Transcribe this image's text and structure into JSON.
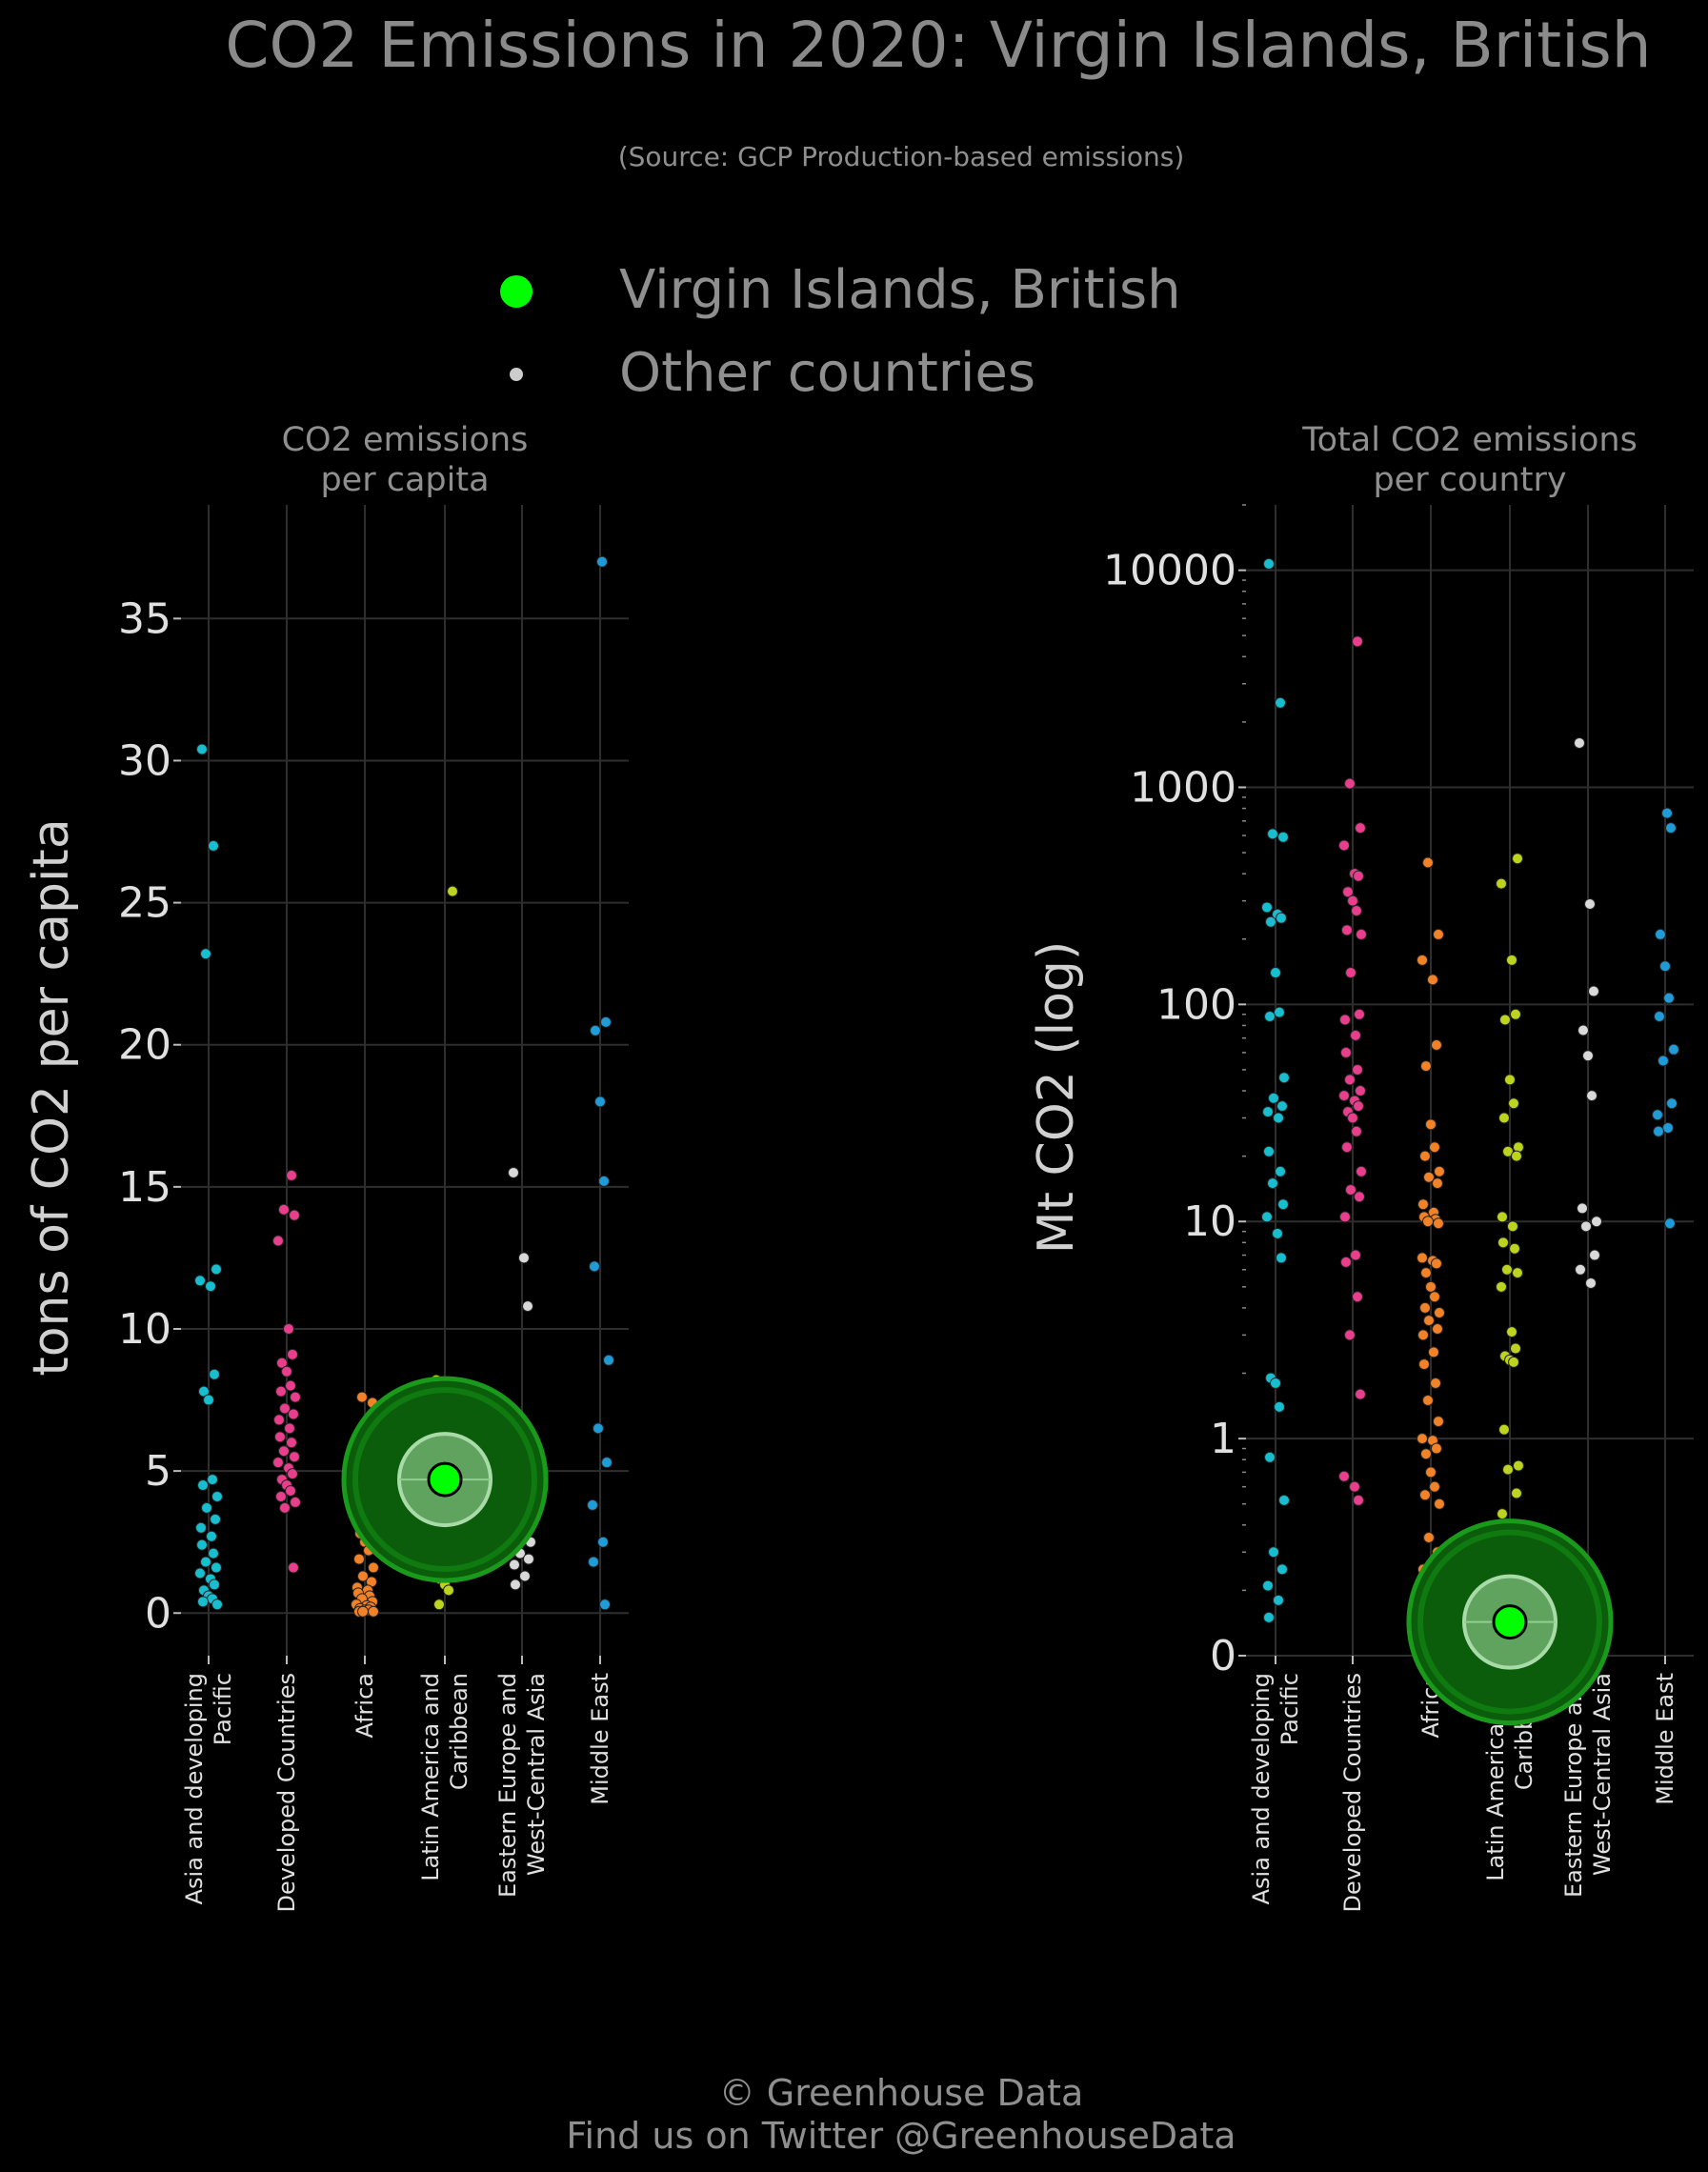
{
  "title": "CO2 Emissions in 2020: Virgin Islands, British",
  "subtitle": "(Source: GCP Production-based emissions)",
  "legend": {
    "highlight_label": "Virgin Islands, British",
    "highlight_color": "#00ff00",
    "other_label": "Other countries",
    "other_color": "#cccccc"
  },
  "footer": {
    "line1": "© Greenhouse Data",
    "line2": "Find us on Twitter @GreenhouseData"
  },
  "chart_data": [
    {
      "type": "scatter",
      "title": "CO2 emissions per capita",
      "title_lines": [
        "CO2 emissions",
        "per capita"
      ],
      "ylabel": "tons of CO2 per capita",
      "ylim": [
        -1.5,
        39
      ],
      "yticks": [
        0,
        5,
        10,
        15,
        20,
        25,
        30,
        35
      ],
      "ytick_labels": [
        "0",
        "5",
        "10",
        "15",
        "20",
        "25",
        "30",
        "35"
      ],
      "grid": true,
      "categories": [
        {
          "lines": [
            "Asia and developing",
            "Pacific"
          ],
          "color": "#17becf"
        },
        {
          "lines": [
            "Developed Countries"
          ],
          "color": "#e83e8c"
        },
        {
          "lines": [
            "Africa"
          ],
          "color": "#f28227"
        },
        {
          "lines": [
            "Latin America and",
            "Caribbean"
          ],
          "color": "#bcd41e"
        },
        {
          "lines": [
            "Eastern Europe and",
            "West-Central Asia"
          ],
          "color": "#d9d9d9"
        },
        {
          "lines": [
            "Middle East"
          ],
          "color": "#1f9bd8"
        }
      ],
      "series": [
        {
          "category": 0,
          "values": [
            30.4,
            27.0,
            23.2,
            12.1,
            11.7,
            11.5,
            8.4,
            7.8,
            7.5,
            4.7,
            4.5,
            4.1,
            3.7,
            3.3,
            3.0,
            2.7,
            2.4,
            2.1,
            1.8,
            1.6,
            1.4,
            1.2,
            1.0,
            0.8,
            0.6,
            0.5,
            0.4,
            0.3
          ]
        },
        {
          "category": 1,
          "values": [
            15.4,
            14.2,
            14.0,
            13.1,
            10.0,
            9.1,
            8.8,
            8.5,
            8.0,
            7.8,
            7.6,
            7.2,
            7.0,
            6.8,
            6.5,
            6.2,
            6.0,
            5.7,
            5.5,
            5.3,
            5.1,
            4.9,
            4.7,
            4.5,
            4.3,
            4.1,
            3.9,
            3.7,
            1.6
          ]
        },
        {
          "category": 2,
          "values": [
            7.6,
            7.4,
            5.0,
            3.5,
            3.2,
            2.8,
            2.5,
            2.2,
            1.9,
            1.6,
            1.3,
            1.1,
            0.9,
            0.8,
            0.7,
            0.6,
            0.5,
            0.4,
            0.3,
            0.25,
            0.2,
            0.15,
            0.1,
            0.1,
            0.05,
            0.05,
            0.05
          ]
        },
        {
          "category": 3,
          "values": [
            25.4,
            8.2,
            7.0,
            6.4,
            6.1,
            5.7,
            5.2,
            4.9,
            4.3,
            3.8,
            3.5,
            3.1,
            2.8,
            2.6,
            2.4,
            2.2,
            2.0,
            1.8,
            1.6,
            1.4,
            1.2,
            1.0,
            0.8,
            0.3
          ]
        },
        {
          "category": 4,
          "values": [
            15.5,
            12.5,
            10.8,
            6.1,
            3.8,
            3.6,
            3.5,
            2.5,
            2.1,
            1.9,
            1.7,
            1.3,
            1.0
          ]
        },
        {
          "category": 5,
          "values": [
            37.0,
            20.8,
            20.5,
            18.0,
            15.2,
            12.2,
            8.9,
            6.5,
            5.3,
            3.8,
            2.5,
            1.8,
            0.3
          ]
        }
      ],
      "highlight": {
        "name": "Virgin Islands, British",
        "category": 3,
        "value": 4.7
      }
    },
    {
      "type": "scatter",
      "title": "Total CO2 emissions per country",
      "title_lines": [
        "Total CO2 emissions",
        "per country"
      ],
      "ylabel": "Mt CO2 (log)",
      "log_scale": true,
      "ylim": [
        0.1,
        20000
      ],
      "yticks": [
        0.1,
        1,
        10,
        100,
        1000,
        10000
      ],
      "ytick_labels": [
        "0",
        "1",
        "10",
        "100",
        "1000",
        "10000"
      ],
      "grid": true,
      "categories": [
        {
          "lines": [
            "Asia and developing",
            "Pacific"
          ],
          "color": "#17becf"
        },
        {
          "lines": [
            "Developed Countries"
          ],
          "color": "#e83e8c"
        },
        {
          "lines": [
            "Africa"
          ],
          "color": "#f28227"
        },
        {
          "lines": [
            "Latin America and",
            "Caribbean"
          ],
          "color": "#bcd41e"
        },
        {
          "lines": [
            "Eastern Europe and",
            "West-Central Asia"
          ],
          "color": "#d9d9d9"
        },
        {
          "lines": [
            "Middle East"
          ],
          "color": "#1f9bd8"
        }
      ],
      "series": [
        {
          "category": 0,
          "values": [
            10700,
            2450,
            610,
            590,
            280,
            260,
            250,
            240,
            140,
            92,
            88,
            46,
            37,
            34,
            32,
            30,
            21,
            17,
            15,
            12,
            10.5,
            8.8,
            6.8,
            1.9,
            1.8,
            1.4,
            0.82,
            0.52,
            0.3,
            0.25,
            0.21,
            0.18,
            0.15
          ]
        },
        {
          "category": 1,
          "values": [
            4700,
            1040,
            650,
            540,
            400,
            390,
            330,
            300,
            270,
            220,
            210,
            140,
            90,
            85,
            72,
            60,
            50,
            45,
            40,
            38,
            36,
            34,
            32,
            30,
            26,
            22,
            17,
            14,
            13,
            10.5,
            7,
            6.5,
            4.5,
            3,
            1.6,
            0.67,
            0.6,
            0.52
          ]
        },
        {
          "category": 2,
          "values": [
            450,
            210,
            160,
            130,
            65,
            52,
            28,
            22,
            20,
            17,
            16,
            15,
            12,
            11,
            10.5,
            10.2,
            10,
            9.8,
            6.8,
            6.6,
            6.4,
            5.8,
            5,
            4.5,
            4,
            3.8,
            3.5,
            3.2,
            3,
            2.5,
            2.2,
            1.8,
            1.5,
            1.2,
            1.0,
            0.98,
            0.9,
            0.85,
            0.7,
            0.6,
            0.55,
            0.5,
            0.35,
            0.3,
            0.25,
            0.2,
            0.14
          ]
        },
        {
          "category": 3,
          "values": [
            470,
            360,
            160,
            90,
            85,
            45,
            35,
            30,
            22,
            21,
            20,
            10.5,
            9.5,
            8,
            7.5,
            6,
            5.8,
            5,
            3.1,
            2.6,
            2.4,
            2.3,
            2.25,
            1.1,
            0.75,
            0.72,
            0.56,
            0.45,
            0.3,
            0.2
          ]
        },
        {
          "category": 4,
          "values": [
            1600,
            290,
            115,
            76,
            58,
            38,
            11.5,
            10,
            9.5,
            7,
            6,
            5.2
          ]
        },
        {
          "category": 5,
          "values": [
            760,
            650,
            210,
            150,
            107,
            88,
            62,
            55,
            35,
            31,
            27,
            26,
            9.8
          ]
        }
      ],
      "highlight": {
        "name": "Virgin Islands, British",
        "category": 3,
        "value": 0.143
      }
    }
  ]
}
